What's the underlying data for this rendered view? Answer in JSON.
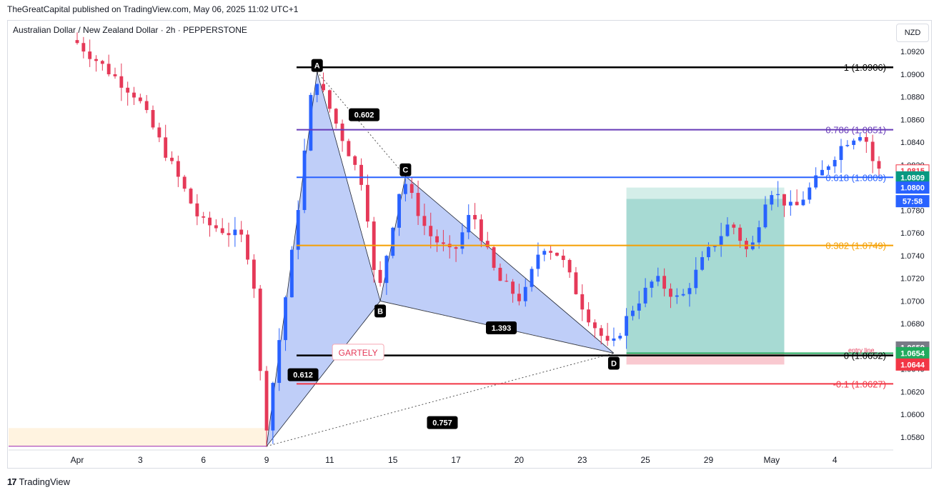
{
  "header": "TheGreatCapital published on TradingView.com, May 06, 2025 11:02 UTC+1",
  "symbol": "Australian Dollar / New Zealand Dollar · 2h · PEPPERSTONE",
  "currency_button": "NZD",
  "footer_brand": "TradingView",
  "chart_data": {
    "type": "candlestick",
    "pair": "AUDNZD",
    "timeframe": "2h",
    "y_axis": {
      "unit": "NZD",
      "range": [
        1.057,
        1.093
      ],
      "ticks": [
        "1.0920",
        "1.0900",
        "1.0880",
        "1.0860",
        "1.0840",
        "1.0820",
        "1.0800",
        "1.0780",
        "1.0760",
        "1.0740",
        "1.0720",
        "1.0700",
        "1.0680",
        "1.0660",
        "1.0640",
        "1.0620",
        "1.0600",
        "1.0580"
      ]
    },
    "x_axis": {
      "ticks": [
        "Apr",
        "3",
        "6",
        "9",
        "11",
        "15",
        "17",
        "20",
        "23",
        "25",
        "29",
        "May",
        "4"
      ],
      "tick_index": [
        0,
        10,
        20,
        30,
        40,
        50,
        60,
        70,
        80,
        90,
        100,
        110,
        120
      ],
      "bars": 128
    },
    "price_path": [
      [
        0,
        1.093
      ],
      [
        10,
        1.088
      ],
      [
        20,
        1.077
      ],
      [
        27,
        1.0755
      ],
      [
        29,
        1.07
      ],
      [
        30,
        1.0572
      ],
      [
        35,
        1.076
      ],
      [
        38,
        1.0902
      ],
      [
        42,
        1.085
      ],
      [
        46,
        1.08
      ],
      [
        48,
        1.07
      ],
      [
        52,
        1.081
      ],
      [
        56,
        1.076
      ],
      [
        60,
        1.074
      ],
      [
        63,
        1.078
      ],
      [
        67,
        1.072
      ],
      [
        71,
        1.07
      ],
      [
        74,
        1.075
      ],
      [
        77,
        1.074
      ],
      [
        81,
        1.069
      ],
      [
        85,
        1.0657
      ],
      [
        88,
        1.069
      ],
      [
        92,
        1.072
      ],
      [
        96,
        1.07
      ],
      [
        100,
        1.074
      ],
      [
        104,
        1.077
      ],
      [
        107,
        1.074
      ],
      [
        110,
        1.08
      ],
      [
        114,
        1.078
      ],
      [
        118,
        1.081
      ],
      [
        122,
        1.084
      ],
      [
        125,
        1.085
      ],
      [
        127,
        1.0815
      ]
    ],
    "fib_levels": [
      {
        "label": "1 (1.0906)",
        "price": 1.0906,
        "color": "#000000"
      },
      {
        "label": "0.786 (1.0851)",
        "price": 1.0851,
        "color": "#673ab7"
      },
      {
        "label": "0.618 (1.0809)",
        "price": 1.0809,
        "color": "#2962ff"
      },
      {
        "label": "0.382 (1.0749)",
        "price": 1.0749,
        "color": "#f59f00"
      },
      {
        "label": "0 (1.0652)",
        "price": 1.0652,
        "color": "#000000"
      },
      {
        "label": "-0.1 (1.0627)",
        "price": 1.0627,
        "color": "#f23645"
      }
    ],
    "pattern": {
      "name": "GARTELY",
      "points": [
        {
          "label": "A",
          "index": 38,
          "price": 1.0902
        },
        {
          "label": "B",
          "index": 48,
          "price": 1.07
        },
        {
          "label": "C",
          "index": 52,
          "price": 1.081
        },
        {
          "label": "D",
          "index": 85,
          "price": 1.0654
        }
      ],
      "start": {
        "index": 30,
        "price": 1.0572
      },
      "ratios": [
        "0.602",
        "1.393",
        "0.612",
        "0.757"
      ]
    },
    "position": {
      "target": 1.079,
      "entry": 1.0654,
      "stop": 1.0644,
      "label_entry": "entry line"
    },
    "price_badges": [
      {
        "text": "1.0815",
        "price": 1.0815,
        "bg": "#ffffff",
        "fg": "#f23645",
        "border": "#f23645"
      },
      {
        "text": "1.0809",
        "price": 1.0809,
        "bg": "#089981",
        "fg": "#ffffff",
        "border": "#089981"
      },
      {
        "text": "1.0800",
        "price": 1.08,
        "bg": "#2962ff",
        "fg": "#ffffff",
        "border": "#2962ff"
      },
      {
        "text": "57:58",
        "price": 1.0788,
        "bg": "#2962ff",
        "fg": "#ffffff",
        "border": "#2962ff"
      },
      {
        "text": "1.0659",
        "price": 1.0659,
        "bg": "#787b86",
        "fg": "#ffffff",
        "border": "#787b86"
      },
      {
        "text": "1.0654",
        "price": 1.0654,
        "bg": "#22ab5e",
        "fg": "#ffffff",
        "border": "#22ab5e"
      },
      {
        "text": "1.0644",
        "price": 1.0644,
        "bg": "#f23645",
        "fg": "#ffffff",
        "border": "#f23645"
      }
    ],
    "colors": {
      "up": "#2962ff",
      "down": "#e53958",
      "pattern_fill": "#a9bdf5",
      "target_fill": "#9fd6cf",
      "stop_fill": "#f9c9d0"
    }
  }
}
